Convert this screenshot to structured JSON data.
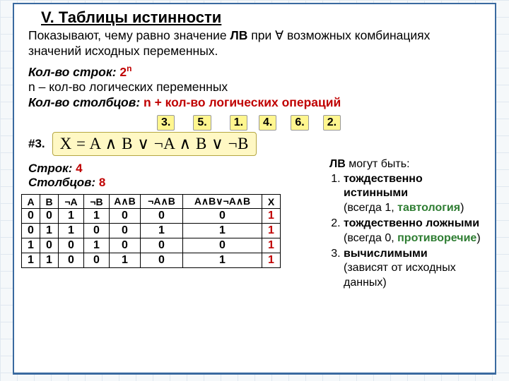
{
  "title": "V. Таблицы истинности",
  "intro_a": "Показывают, чему равно значение ",
  "intro_b": "ЛВ",
  "intro_c": " при ∀ возможных комбинациях значений исходных переменных.",
  "rows_lbl": "Кол-во строк: ",
  "rows_val_base": "2",
  "rows_val_exp": "n",
  "nline": "n – кол-во логических переменных",
  "cols_lbl": "Кол-во столбцов: ",
  "cols_val": "n + кол-во логических операций",
  "opnums": [
    "3.",
    "5.",
    "1.",
    "4.",
    "6.",
    "2."
  ],
  "hash": "#3.",
  "formula": "X = A ∧ B ∨ ¬A ∧ B ∨ ¬B",
  "counts_rows_lbl": "Строк: ",
  "counts_rows_val": "4",
  "counts_cols_lbl": "Столбцов: ",
  "counts_cols_val": "8",
  "headers": [
    "A",
    "B",
    "¬A",
    "¬B",
    "A∧B",
    "¬A∧B",
    "A∧B∨¬A∧B",
    "X"
  ],
  "rows": [
    [
      "0",
      "0",
      "1",
      "1",
      "0",
      "0",
      "0",
      "1"
    ],
    [
      "0",
      "1",
      "1",
      "0",
      "0",
      "1",
      "1",
      "1"
    ],
    [
      "1",
      "0",
      "0",
      "1",
      "0",
      "0",
      "0",
      "1"
    ],
    [
      "1",
      "1",
      "0",
      "0",
      "1",
      "0",
      "1",
      "1"
    ]
  ],
  "side_title": "ЛВ ",
  "side_title2": "могут быть:",
  "side1a": "тождественно истинными",
  "side1b": "(всегда 1, ",
  "side1c": "тавтология",
  "side1d": ")",
  "side2a": "тождественно ложными",
  "side2b": "(всегда 0, ",
  "side2c": "противоречие",
  "side2d": ")",
  "side3a": "вычислимыми",
  "side3b": "(зависят от исходных данных)",
  "colors": {
    "red": "#c00000",
    "green": "#2e7d32",
    "yellow_bg": "#fff68f",
    "border_blue": "#3a6aa0"
  }
}
